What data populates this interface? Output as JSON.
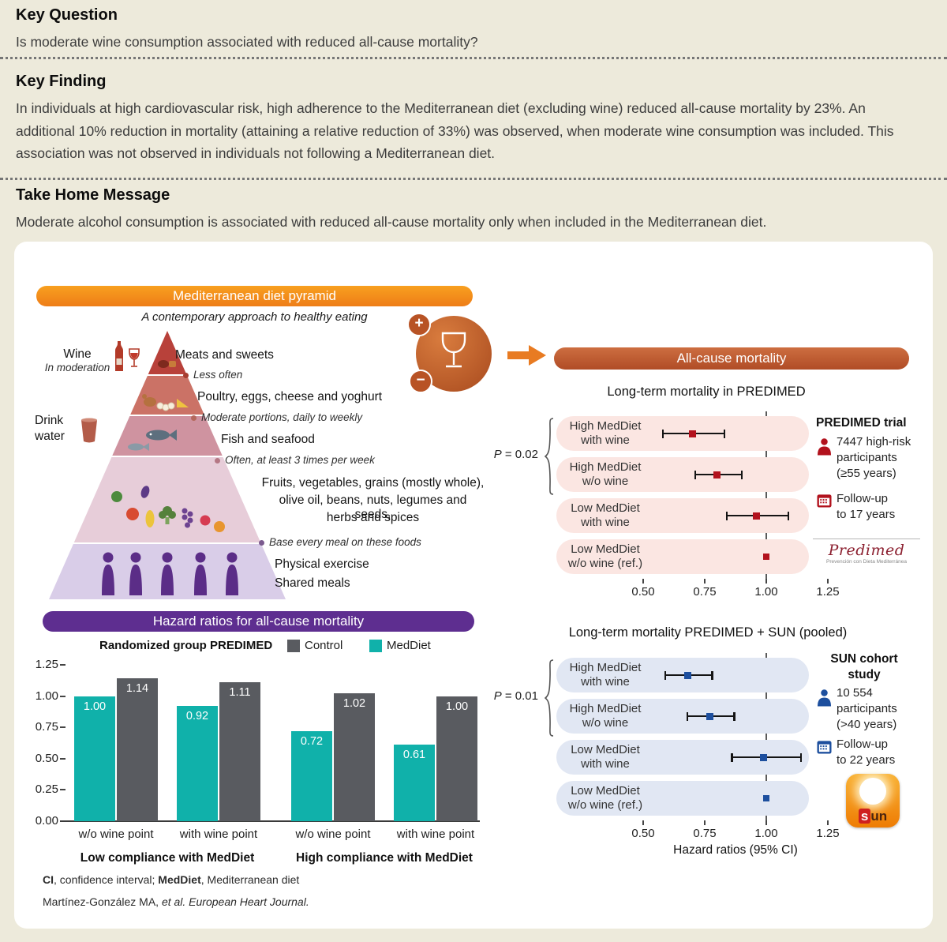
{
  "header": {
    "key_question_title": "Key Question",
    "key_question_text": "Is moderate wine consumption associated with reduced all-cause mortality?",
    "key_finding_title": "Key Finding",
    "key_finding_text": "In individuals at high cardiovascular risk, high adherence to the Mediterranean diet (excluding wine) reduced all-cause mortality by 23%. An additional 10% reduction in mortality (attaining a relative reduction of 33%) was observed, when moderate wine consumption was included. This association was not observed in individuals not following a Mediterranean diet.",
    "take_home_title": "Take Home Message",
    "take_home_text": "Moderate alcohol consumption is associated with reduced all-cause mortality only when included in the Mediterranean diet."
  },
  "pyramid": {
    "header": "Mediterranean diet pyramid",
    "subtitle": "A contemporary approach to healthy eating",
    "wine_label": "Wine",
    "wine_caption": "In moderation",
    "water_label_line1": "Drink",
    "water_label_line2": "water",
    "level1_label": "Meats and sweets",
    "level1_caption": "Less often",
    "level2_label": "Poultry, eggs, cheese and yoghurt",
    "level2_caption": "Moderate portions, daily to weekly",
    "level3_label": "Fish and seafood",
    "level3_caption": "Often, at least 3 times per week",
    "level4_label_line1": "Fruits, vegetables, grains (mostly whole),",
    "level4_label_line2": "olive oil, beans, nuts, legumes and seeds,",
    "level4_label_line3": "herbs and spices",
    "level4_caption": "Base every meal on these foods",
    "level5_label_line1": "Physical exercise",
    "level5_label_line2": "Shared meals"
  },
  "badge": {
    "plus": "+",
    "minus": "−"
  },
  "mortality": {
    "pill": "All-cause mortality"
  },
  "chart_data": [
    {
      "type": "bar",
      "title": "Hazard ratios for all-cause mortality",
      "legend_title": "Randomized group PREDIMED",
      "categories": [
        "w/o wine point",
        "with wine point",
        "w/o wine point",
        "with wine point"
      ],
      "group_labels": [
        "Low compliance with MedDiet",
        "High compliance with MedDiet"
      ],
      "series": [
        {
          "name": "MedDiet",
          "color": "#10b1aa",
          "values": [
            1.0,
            0.92,
            0.72,
            0.61
          ]
        },
        {
          "name": "Control",
          "color": "#595b60",
          "values": [
            1.14,
            1.11,
            1.02,
            1.0
          ]
        }
      ],
      "ylim": [
        0,
        1.25
      ],
      "yticks": [
        0.0,
        0.25,
        0.5,
        0.75,
        1.0,
        1.25
      ]
    },
    {
      "type": "forest",
      "title": "Long-term mortality in PREDIMED",
      "p_prefix": "P",
      "p_rest": " = 0.02",
      "marker_color": "#b2121d",
      "row_color": "#fbe6e2",
      "refline": 1.0,
      "xticks": [
        0.5,
        0.75,
        1.0,
        1.25
      ],
      "rows": [
        {
          "label1": "High MedDiet",
          "label2": "with wine",
          "hr": 0.7,
          "lo": 0.58,
          "hi": 0.83
        },
        {
          "label1": "High MedDiet",
          "label2": "w/o wine",
          "hr": 0.8,
          "lo": 0.71,
          "hi": 0.9
        },
        {
          "label1": "Low MedDiet",
          "label2": "with wine",
          "hr": 0.96,
          "lo": 0.84,
          "hi": 1.09
        },
        {
          "label1": "Low MedDiet",
          "label2": "w/o wine (ref.)",
          "hr": 1.0,
          "ref": true
        }
      ]
    },
    {
      "type": "forest",
      "title": "Long-term mortality PREDIMED + SUN (pooled)",
      "p_prefix": "P",
      "p_rest": " = 0.01",
      "marker_color": "#1d4f9e",
      "row_color": "#e1e7f3",
      "refline": 1.0,
      "xticks": [
        0.5,
        0.75,
        1.0,
        1.25
      ],
      "xlabel": "Hazard ratios (95% CI)",
      "rows": [
        {
          "label1": "High MedDiet",
          "label2": "with wine",
          "hr": 0.68,
          "lo": 0.59,
          "hi": 0.78
        },
        {
          "label1": "High MedDiet",
          "label2": "w/o wine",
          "hr": 0.77,
          "lo": 0.68,
          "hi": 0.87
        },
        {
          "label1": "Low MedDiet",
          "label2": "with wine",
          "hr": 0.99,
          "lo": 0.86,
          "hi": 1.14
        },
        {
          "label1": "Low MedDiet",
          "label2": "w/o wine (ref.)",
          "hr": 1.0,
          "ref": true
        }
      ]
    }
  ],
  "predimed_info": {
    "title": "PREDIMED trial",
    "participants_line1": "7447 high-risk",
    "participants_line2": "participants",
    "participants_line3": "(≥55 years)",
    "followup_line1": "Follow-up",
    "followup_line2": "to 17 years",
    "logo_text": "Predimed",
    "logo_caption": "Prevención con Dieta Mediterránea"
  },
  "sun_info": {
    "title_line1": "SUN cohort",
    "title_line2": "study",
    "participants_line1": "10 554",
    "participants_line2": "participants",
    "participants_line3": "(>40 years)",
    "followup_line1": "Follow-up",
    "followup_line2": "to 22 years",
    "logo_s": "s",
    "logo_un": "un"
  },
  "footnotes": {
    "fn1_bold1": "CI",
    "fn1_text1": ", confidence interval; ",
    "fn1_bold2": "MedDiet",
    "fn1_text2": ", Mediterranean diet",
    "fn2_normal": "Martínez-González MA, ",
    "fn2_italic": "et al. European Heart Journal."
  }
}
